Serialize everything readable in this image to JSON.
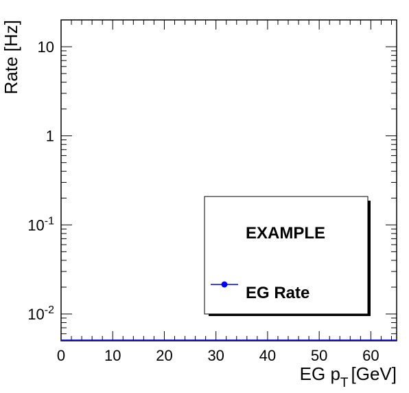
{
  "chart_data": {
    "type": "scatter",
    "title": "",
    "xlabel": "EG p",
    "xlabel_subscript": "T",
    "xlabel_unit": "[GeV]",
    "ylabel": "Rate [Hz]",
    "xlim": [
      0,
      65
    ],
    "ylim": [
      0.005,
      20
    ],
    "yscale": "log",
    "grid": false,
    "x_ticks": [
      0,
      10,
      20,
      30,
      40,
      50,
      60
    ],
    "y_ticks": [
      {
        "base": "10",
        "exp": "",
        "value": 10
      },
      {
        "base": "1",
        "exp": "",
        "value": 1
      },
      {
        "base": "10",
        "exp": "-1",
        "value": 0.1
      },
      {
        "base": "10",
        "exp": "-2",
        "value": 0.01
      }
    ],
    "series": [
      {
        "name": "EG Rate",
        "color": "#0000ff",
        "marker": "circle",
        "x": [],
        "y": []
      }
    ],
    "legend": {
      "position": "bottom-right",
      "header": "EXAMPLE",
      "entries": [
        "EG Rate"
      ]
    }
  }
}
